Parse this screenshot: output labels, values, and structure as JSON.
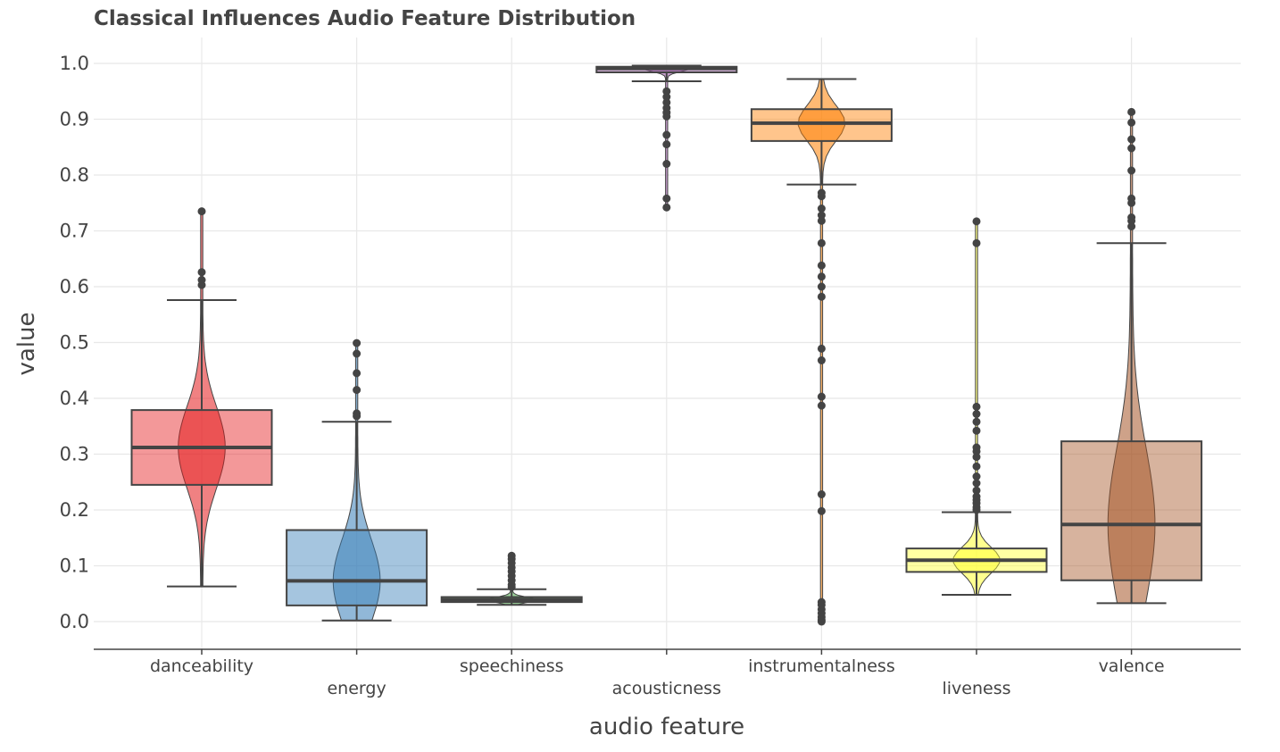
{
  "chart_data": {
    "type": "box",
    "title": "Classical Influences Audio Feature Distribution",
    "xlabel": "audio feature",
    "ylabel": "value",
    "ylim": [
      -0.05,
      1.04
    ],
    "yticks": [
      "0.0",
      "0.1",
      "0.2",
      "0.3",
      "0.4",
      "0.5",
      "0.6",
      "0.7",
      "0.8",
      "0.9",
      "1.0"
    ],
    "grid": true,
    "legend": "none",
    "categories": [
      "danceability",
      "energy",
      "speechiness",
      "acousticness",
      "instrumentalness",
      "liveness",
      "valence"
    ],
    "series": [
      {
        "category": "danceability",
        "color": "#e41a1c",
        "box": {
          "whisker_low": 0.063,
          "q1": 0.245,
          "median": 0.312,
          "q3": 0.379,
          "whisker_high": 0.576
        },
        "violin_range": [
          0.063,
          0.735
        ],
        "outliers": [
          0.603,
          0.612,
          0.626,
          0.735
        ]
      },
      {
        "category": "energy",
        "color": "#377eb8",
        "box": {
          "whisker_low": 0.002,
          "q1": 0.029,
          "median": 0.073,
          "q3": 0.164,
          "whisker_high": 0.358
        },
        "violin_range": [
          0.002,
          0.499
        ],
        "outliers": [
          0.368,
          0.373,
          0.415,
          0.445,
          0.48,
          0.499
        ]
      },
      {
        "category": "speechiness",
        "color": "#4daf4a",
        "box": {
          "whisker_low": 0.03,
          "q1": 0.035,
          "median": 0.039,
          "q3": 0.044,
          "whisker_high": 0.058
        },
        "violin_range": [
          0.03,
          0.118
        ],
        "outliers": [
          0.062,
          0.066,
          0.074,
          0.082,
          0.09,
          0.097,
          0.105,
          0.112,
          0.118
        ]
      },
      {
        "category": "acousticness",
        "color": "#984ea3",
        "box": {
          "whisker_low": 0.968,
          "q1": 0.984,
          "median": 0.991,
          "q3": 0.994,
          "whisker_high": 0.996
        },
        "violin_range": [
          0.742,
          0.996
        ],
        "outliers": [
          0.742,
          0.758,
          0.82,
          0.855,
          0.872,
          0.905,
          0.912,
          0.92,
          0.93,
          0.94,
          0.95
        ]
      },
      {
        "category": "instrumentalness",
        "color": "#ff7f00",
        "box": {
          "whisker_low": 0.783,
          "q1": 0.861,
          "median": 0.893,
          "q3": 0.918,
          "whisker_high": 0.972
        },
        "violin_range": [
          0.0,
          0.972
        ],
        "outliers": [
          0.0,
          0.003,
          0.008,
          0.015,
          0.022,
          0.03,
          0.035,
          0.198,
          0.228,
          0.387,
          0.403,
          0.468,
          0.489,
          0.582,
          0.6,
          0.618,
          0.638,
          0.678,
          0.718,
          0.728,
          0.74,
          0.762,
          0.768
        ]
      },
      {
        "category": "liveness",
        "color": "#ffff33",
        "box": {
          "whisker_low": 0.048,
          "q1": 0.089,
          "median": 0.11,
          "q3": 0.131,
          "whisker_high": 0.196
        },
        "violin_range": [
          0.048,
          0.717
        ],
        "outliers": [
          0.2,
          0.205,
          0.212,
          0.218,
          0.224,
          0.235,
          0.248,
          0.26,
          0.278,
          0.295,
          0.305,
          0.312,
          0.342,
          0.358,
          0.372,
          0.385,
          0.678,
          0.717
        ]
      },
      {
        "category": "valence",
        "color": "#a65628",
        "box": {
          "whisker_low": 0.033,
          "q1": 0.074,
          "median": 0.174,
          "q3": 0.323,
          "whisker_high": 0.678
        },
        "violin_range": [
          0.033,
          0.913
        ],
        "outliers": [
          0.708,
          0.718,
          0.724,
          0.75,
          0.758,
          0.808,
          0.848,
          0.864,
          0.894,
          0.913
        ]
      }
    ]
  }
}
